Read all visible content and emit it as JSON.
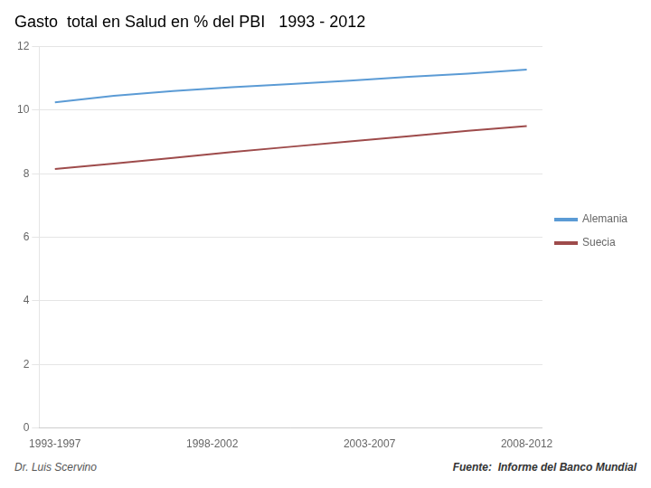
{
  "chart_data": {
    "type": "line",
    "title": "Gasto  total en Salud en % del PBI   1993 - 2012",
    "x": [
      0,
      0.375,
      0.75,
      1.125,
      1.5,
      1.875,
      2.25,
      2.625,
      3
    ],
    "series": [
      {
        "name": "Alemania",
        "color": "#5B9BD5",
        "values": [
          10.25,
          10.45,
          10.6,
          10.72,
          10.82,
          10.93,
          11.05,
          11.15,
          11.28
        ]
      },
      {
        "name": "Suecia",
        "color": "#9E4B4B",
        "values": [
          8.15,
          8.32,
          8.5,
          8.68,
          8.85,
          9.02,
          9.18,
          9.35,
          9.5
        ]
      }
    ],
    "xlim": [
      -0.1,
      3.1
    ],
    "xticks": [
      {
        "value": 0,
        "label": "1993-1997"
      },
      {
        "value": 1,
        "label": "1998-2002"
      },
      {
        "value": 2,
        "label": "2003-2007"
      },
      {
        "value": 3,
        "label": "2008-2012"
      }
    ],
    "ylim": [
      0,
      12
    ],
    "yticks": [
      0,
      2,
      4,
      6,
      8,
      10,
      12
    ],
    "grid": "y",
    "legend": "right",
    "annotations": [
      "Dr. Luis Scervino",
      "Fuente:  Informe del Banco Mundial"
    ]
  }
}
